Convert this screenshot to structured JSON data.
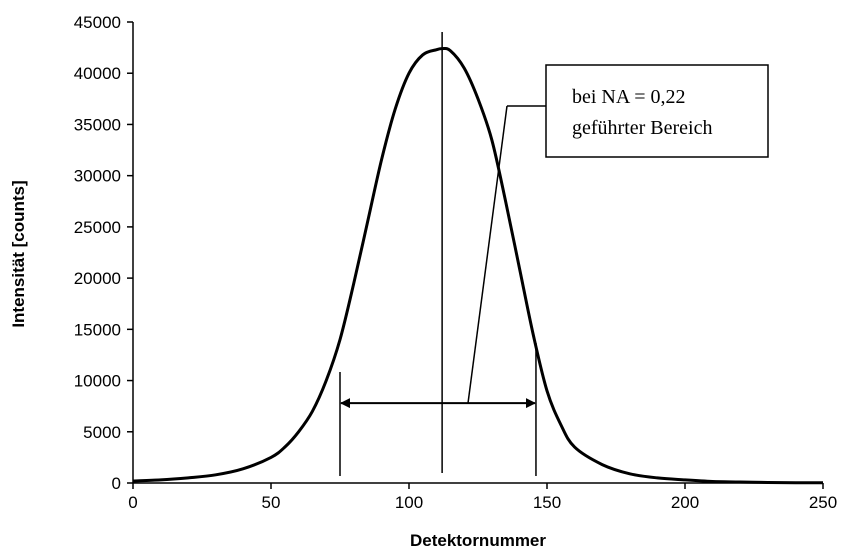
{
  "chart_data": {
    "type": "line",
    "xlabel": "Detektornummer",
    "ylabel": "Intensität [counts]",
    "xlim": [
      0,
      250
    ],
    "ylim": [
      0,
      45000
    ],
    "x_ticks": [
      0,
      50,
      100,
      150,
      200,
      250
    ],
    "y_ticks": [
      0,
      5000,
      10000,
      15000,
      20000,
      25000,
      30000,
      35000,
      40000,
      45000
    ],
    "grid": false,
    "legend": "none",
    "series": [
      {
        "color": "#000000",
        "x": [
          0,
          10,
          20,
          30,
          40,
          50,
          55,
          60,
          65,
          70,
          75,
          80,
          85,
          90,
          95,
          100,
          105,
          110,
          112,
          115,
          120,
          125,
          130,
          135,
          140,
          145,
          150,
          155,
          160,
          170,
          180,
          190,
          200,
          210,
          220,
          230,
          240,
          250
        ],
        "y": [
          200,
          300,
          500,
          800,
          1400,
          2500,
          3500,
          5000,
          7000,
          10000,
          14000,
          19500,
          25500,
          31500,
          36500,
          40000,
          41800,
          42300,
          42400,
          42200,
          40500,
          37500,
          33500,
          27500,
          21000,
          14500,
          9000,
          5700,
          3500,
          1800,
          900,
          500,
          300,
          150,
          100,
          50,
          30,
          20
        ]
      }
    ],
    "annotations": {
      "center_line_x": 112,
      "boundary_lines_x": [
        75,
        146
      ],
      "arrow_y": 7800,
      "text_lines": [
        "bei NA = 0,22",
        "geführter Bereich"
      ]
    }
  }
}
